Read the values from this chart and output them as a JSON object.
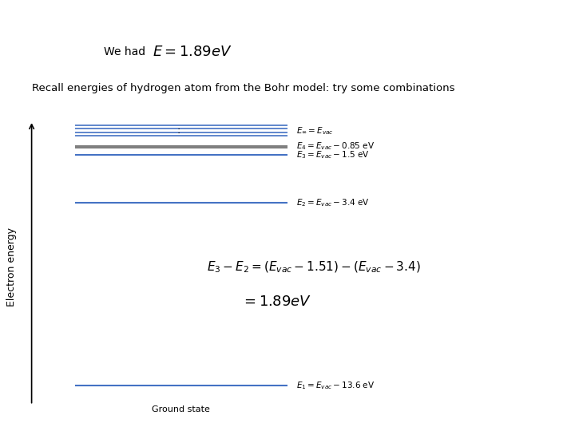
{
  "bg_color": "#ffffff",
  "title_text": "We had",
  "title_formula": "$E = 1.89eV$",
  "subtitle": "Recall energies of hydrogen atom from the Bohr model: try some combinations",
  "ylabel": "Electron energy",
  "ground_state_label": "Ground state",
  "level_colors": {
    "E_inf": "#4472C4",
    "E4": "#808080",
    "E3": "#4472C4",
    "E2": "#4472C4",
    "E1": "#4472C4"
  },
  "level_labels": {
    "E_inf": "$E_{\\infty} = E_{vac}$",
    "E4": "$E_4 = E_{vac} - 0.85$ eV",
    "E3": "$E_3 = E_{vac} - 1.5$ eV",
    "E2": "$E_2 = E_{vac} - 3.4$ eV",
    "E1": "$E_1 = E_{vac} - 13.6$ eV"
  },
  "formula1": "$E_3 - E_2 = (E_{vac} - 1.51) - \\left(E_{vac} - 3.4\\right)$",
  "formula2": "$= 1.89eV$",
  "colon_label": ":"
}
